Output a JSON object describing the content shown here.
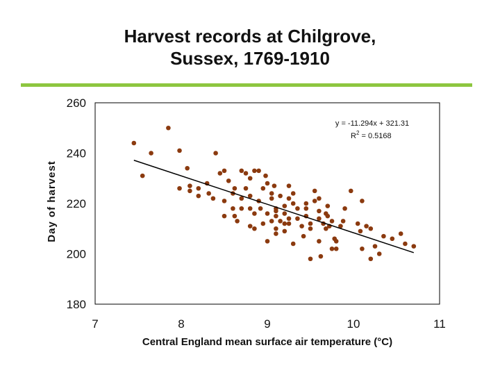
{
  "slide": {
    "title_line1": "Harvest records at Chilgrove,",
    "title_line2": "Sussex, 1769-1910",
    "accent_color": "#8dc63f"
  },
  "chart_data": {
    "type": "scatter",
    "title": "Harvest records at Chilgrove, Sussex, 1769-1910",
    "xlabel": "Central England mean surface air temperature (°C)",
    "ylabel": "Day of harvest",
    "xlim": [
      7,
      11
    ],
    "ylim": [
      180,
      260
    ],
    "xticks": [
      7,
      8,
      9,
      10,
      11
    ],
    "yticks": [
      260,
      240,
      220,
      200,
      180
    ],
    "marker_color": "#8b3a0f",
    "trendline": {
      "slope": -11.294,
      "intercept": 321.31,
      "x_range": [
        7.45,
        10.7
      ],
      "color": "#000000"
    },
    "equation_text": "y = -11.294x + 321.31",
    "r2_label": "R",
    "r2_sup": "2",
    "r2_value": " = 0.5168",
    "points": [
      [
        7.45,
        244
      ],
      [
        7.55,
        231
      ],
      [
        7.65,
        240
      ],
      [
        7.85,
        250
      ],
      [
        7.98,
        241
      ],
      [
        8.07,
        234
      ],
      [
        7.98,
        226
      ],
      [
        8.1,
        227
      ],
      [
        8.1,
        225
      ],
      [
        8.2,
        226
      ],
      [
        8.2,
        223
      ],
      [
        8.3,
        228
      ],
      [
        8.32,
        224
      ],
      [
        8.37,
        222
      ],
      [
        8.4,
        240
      ],
      [
        8.45,
        232
      ],
      [
        8.5,
        233
      ],
      [
        8.5,
        221
      ],
      [
        8.55,
        229
      ],
      [
        8.6,
        224
      ],
      [
        8.62,
        226
      ],
      [
        8.7,
        233
      ],
      [
        8.75,
        232
      ],
      [
        8.75,
        226
      ],
      [
        8.8,
        230
      ],
      [
        8.85,
        233
      ],
      [
        8.9,
        233
      ],
      [
        8.95,
        226
      ],
      [
        8.6,
        218
      ],
      [
        8.5,
        215
      ],
      [
        8.62,
        215
      ],
      [
        8.65,
        213
      ],
      [
        8.7,
        218
      ],
      [
        8.8,
        218
      ],
      [
        8.85,
        216
      ],
      [
        8.9,
        221
      ],
      [
        8.92,
        218
      ],
      [
        8.95,
        212
      ],
      [
        8.7,
        222
      ],
      [
        8.8,
        223
      ],
      [
        8.8,
        211
      ],
      [
        8.85,
        210
      ],
      [
        8.98,
        231
      ],
      [
        9.0,
        228
      ],
      [
        9.05,
        224
      ],
      [
        9.05,
        222
      ],
      [
        9.08,
        227
      ],
      [
        9.1,
        217
      ],
      [
        9.1,
        215
      ],
      [
        9.15,
        213
      ],
      [
        9.1,
        210
      ],
      [
        9.1,
        208
      ],
      [
        9.15,
        223
      ],
      [
        9.2,
        219
      ],
      [
        9.2,
        216
      ],
      [
        9.25,
        214
      ],
      [
        9.25,
        212
      ],
      [
        9.3,
        224
      ],
      [
        9.3,
        220
      ],
      [
        9.35,
        218
      ],
      [
        9.35,
        214
      ],
      [
        9.4,
        211
      ],
      [
        9.42,
        207
      ],
      [
        9.45,
        218
      ],
      [
        9.45,
        215
      ],
      [
        9.5,
        212
      ],
      [
        9.5,
        210
      ],
      [
        9.55,
        225
      ],
      [
        9.55,
        221
      ],
      [
        9.6,
        217
      ],
      [
        9.6,
        214
      ],
      [
        9.65,
        212
      ],
      [
        9.68,
        210
      ],
      [
        9.7,
        219
      ],
      [
        9.7,
        215
      ],
      [
        9.72,
        211
      ],
      [
        9.75,
        213
      ],
      [
        9.78,
        206
      ],
      [
        9.8,
        205
      ],
      [
        9.85,
        211
      ],
      [
        9.88,
        213
      ],
      [
        9.3,
        204
      ],
      [
        9.5,
        198
      ],
      [
        9.62,
        199
      ],
      [
        9.68,
        216
      ],
      [
        9.2,
        212
      ],
      [
        9.2,
        209
      ],
      [
        9.0,
        205
      ],
      [
        9.0,
        216
      ],
      [
        9.05,
        213
      ],
      [
        9.25,
        222
      ],
      [
        9.25,
        227
      ],
      [
        9.1,
        218
      ],
      [
        9.6,
        205
      ],
      [
        9.75,
        202
      ],
      [
        9.8,
        202
      ],
      [
        9.97,
        225
      ],
      [
        10.1,
        221
      ],
      [
        10.15,
        211
      ],
      [
        10.2,
        210
      ],
      [
        10.25,
        203
      ],
      [
        10.3,
        200
      ],
      [
        10.35,
        207
      ],
      [
        10.45,
        206
      ],
      [
        10.55,
        208
      ],
      [
        10.6,
        204
      ],
      [
        10.7,
        203
      ],
      [
        10.05,
        212
      ],
      [
        10.08,
        209
      ],
      [
        10.1,
        202
      ],
      [
        10.2,
        198
      ],
      [
        9.9,
        218
      ],
      [
        9.45,
        220
      ],
      [
        9.6,
        222
      ]
    ]
  }
}
